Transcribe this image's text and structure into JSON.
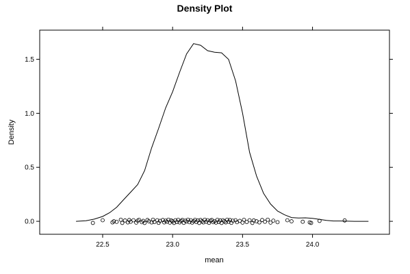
{
  "chart_data": {
    "type": "line",
    "title": "Density Plot",
    "xlabel": "mean",
    "ylabel": "Density",
    "xlim": [
      22.05,
      24.55
    ],
    "ylim": [
      -0.12,
      1.77
    ],
    "x_ticks": [
      22.5,
      23.0,
      23.5,
      24.0
    ],
    "x_tick_labels": [
      "22.5",
      "23.0",
      "23.5",
      "24.0"
    ],
    "y_ticks": [
      0.0,
      0.5,
      1.0,
      1.5
    ],
    "y_tick_labels": [
      "0.0",
      "0.5",
      "1.0",
      "1.5"
    ],
    "grid": false,
    "series": [
      {
        "x": [
          22.31,
          22.38,
          22.44,
          22.5,
          22.55,
          22.6,
          22.65,
          22.7,
          22.75,
          22.8,
          22.85,
          22.9,
          22.95,
          23.0,
          23.05,
          23.1,
          23.15,
          23.2,
          23.25,
          23.3,
          23.35,
          23.4,
          23.45,
          23.5,
          23.55,
          23.6,
          23.65,
          23.7,
          23.75,
          23.8,
          23.85,
          23.9,
          23.95,
          24.0,
          24.05,
          24.1,
          24.15,
          24.2,
          24.3,
          24.4
        ],
        "y": [
          0.0,
          0.005,
          0.02,
          0.045,
          0.08,
          0.13,
          0.2,
          0.27,
          0.34,
          0.47,
          0.68,
          0.86,
          1.05,
          1.2,
          1.38,
          1.55,
          1.645,
          1.63,
          1.58,
          1.565,
          1.56,
          1.5,
          1.3,
          1.0,
          0.64,
          0.42,
          0.26,
          0.16,
          0.095,
          0.06,
          0.035,
          0.03,
          0.032,
          0.028,
          0.018,
          0.008,
          0.003,
          0.003,
          0.0,
          0.0
        ]
      }
    ],
    "rug": {
      "values": [
        22.43,
        22.5,
        22.57,
        22.58,
        22.6,
        22.63,
        22.64,
        22.66,
        22.68,
        22.69,
        22.7,
        22.72,
        22.74,
        22.75,
        22.76,
        22.78,
        22.79,
        22.8,
        22.82,
        22.83,
        22.85,
        22.86,
        22.87,
        22.89,
        22.9,
        22.91,
        22.93,
        22.94,
        22.95,
        22.96,
        22.97,
        22.98,
        22.99,
        23.0,
        23.01,
        23.02,
        23.03,
        23.04,
        23.05,
        23.06,
        23.07,
        23.08,
        23.09,
        23.1,
        23.11,
        23.12,
        23.13,
        23.14,
        23.15,
        23.16,
        23.17,
        23.18,
        23.19,
        23.2,
        23.21,
        23.22,
        23.23,
        23.24,
        23.25,
        23.26,
        23.27,
        23.28,
        23.29,
        23.3,
        23.31,
        23.32,
        23.33,
        23.34,
        23.35,
        23.36,
        23.37,
        23.38,
        23.39,
        23.4,
        23.41,
        23.42,
        23.43,
        23.45,
        23.46,
        23.48,
        23.5,
        23.51,
        23.53,
        23.55,
        23.57,
        23.58,
        23.6,
        23.62,
        23.64,
        23.66,
        23.68,
        23.7,
        23.72,
        23.75,
        23.82,
        23.85,
        23.93,
        23.98,
        23.99,
        24.05,
        24.23
      ],
      "jitter": [
        -0.015,
        0.01,
        -0.01,
        0.0,
        -0.005,
        0.015,
        -0.015,
        0.008,
        -0.01,
        0.012,
        -0.004,
        0.01,
        -0.012,
        0.006,
        0.014,
        -0.008,
        0.004,
        -0.015,
        0.012,
        0.0,
        -0.01,
        0.015,
        -0.006,
        0.01,
        -0.014,
        0.004,
        0.012,
        -0.01,
        0.006,
        -0.004,
        0.015,
        -0.012,
        0.008,
        0.0,
        -0.015,
        0.01,
        -0.006,
        0.014,
        -0.01,
        0.004,
        0.012,
        -0.014,
        0.006,
        -0.002,
        0.015,
        -0.008,
        0.01,
        -0.012,
        0.002,
        0.014,
        -0.006,
        0.008,
        -0.015,
        0.012,
        0.0,
        -0.01,
        0.015,
        -0.004,
        0.01,
        -0.014,
        0.006,
        0.012,
        -0.008,
        0.002,
        -0.012,
        0.014,
        -0.006,
        0.008,
        -0.015,
        0.01,
        0.0,
        -0.01,
        0.015,
        -0.004,
        0.012,
        -0.014,
        0.006,
        0.01,
        -0.008,
        0.004,
        -0.012,
        0.014,
        -0.006,
        0.01,
        -0.015,
        0.008,
        0.0,
        -0.01,
        0.012,
        -0.004,
        0.015,
        -0.012,
        0.006,
        -0.008,
        0.01,
        0.0,
        -0.004,
        -0.01,
        -0.015,
        0.004,
        0.008
      ]
    }
  }
}
